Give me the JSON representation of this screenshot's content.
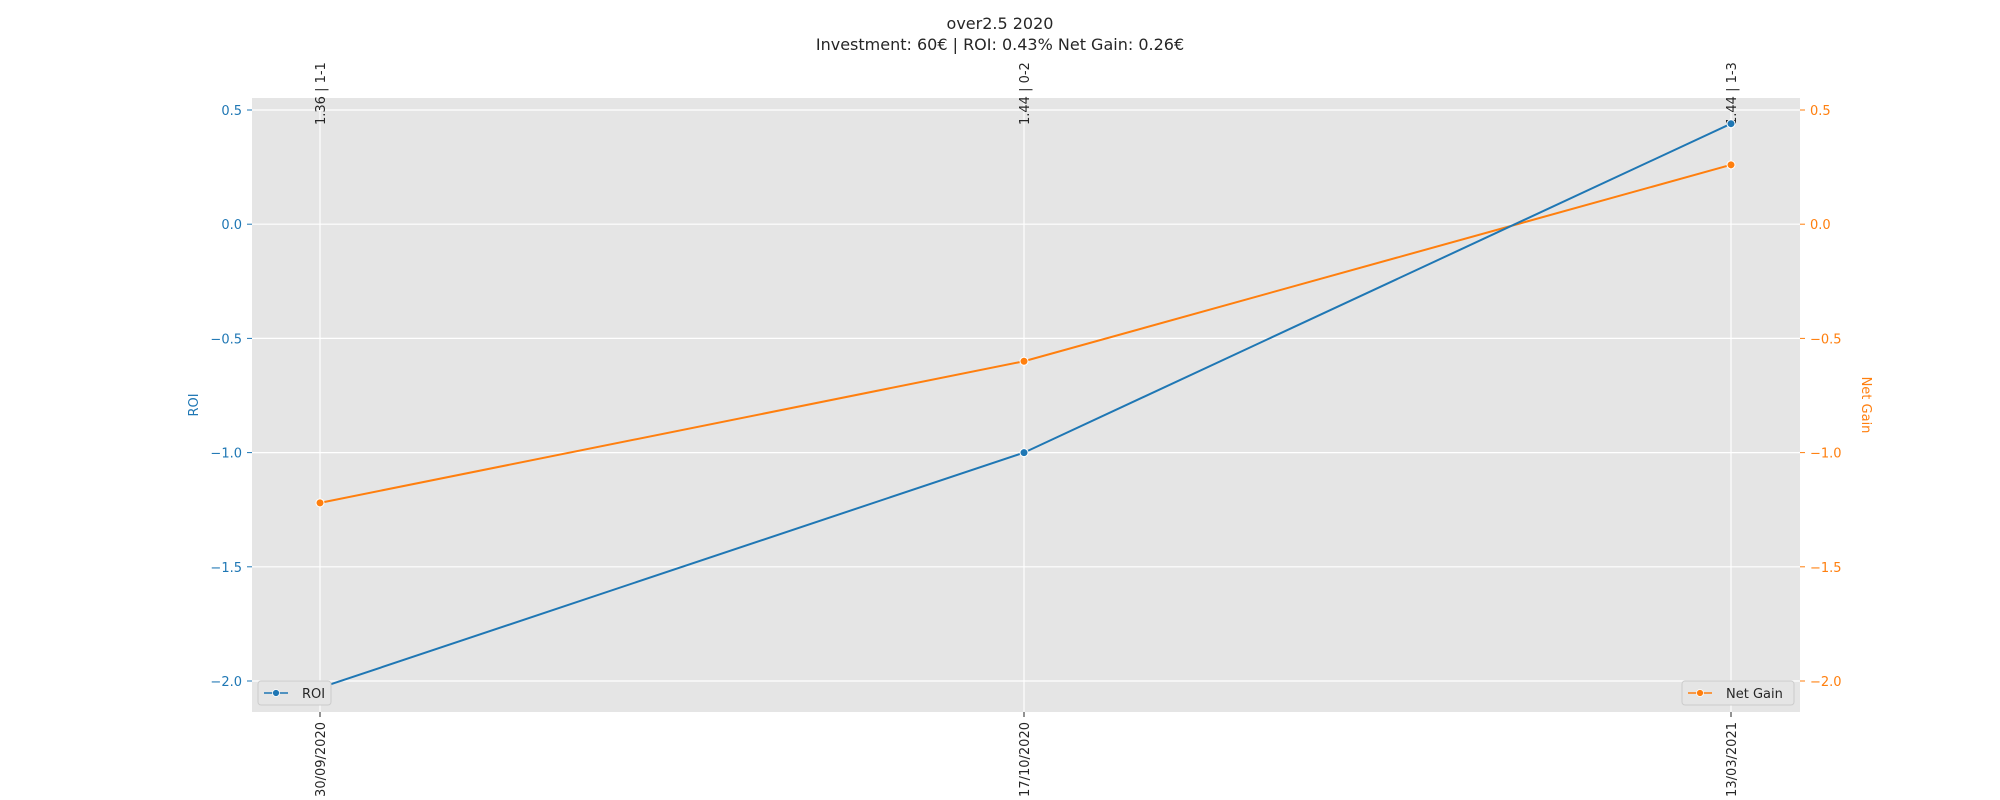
{
  "chart_data": {
    "type": "line",
    "title": "over2.5 2020",
    "subtitle": "Investment: 60€ | ROI: 0.43% Net Gain: 0.26€",
    "x": [
      "30/09/2020",
      "17/10/2020",
      "13/03/2021"
    ],
    "top_labels": [
      "1.36 | 1-1",
      "1.44 | 0-2",
      "1.44 | 1-3"
    ],
    "series": [
      {
        "name": "ROI",
        "axis": "left",
        "color": "#1f77b4",
        "values": [
          -2.03,
          -1.0,
          0.44
        ]
      },
      {
        "name": "Net Gain",
        "axis": "right",
        "color": "#ff7f0e",
        "values": [
          -1.22,
          -0.6,
          0.26
        ]
      }
    ],
    "ylabel_left": "ROI",
    "ylabel_right": "Net Gain",
    "ylim": [
      -2.1,
      0.55
    ],
    "yticks": [
      -2.0,
      -1.5,
      -1.0,
      -0.5,
      0.0,
      0.5
    ],
    "ytick_labels": [
      "−2.0",
      "−1.5",
      "−1.0",
      "−0.5",
      "0.0",
      "0.5"
    ],
    "grid": true,
    "legend_left": {
      "position": "lower-left",
      "label": "ROI"
    },
    "legend_right": {
      "position": "lower-right",
      "label": "Net Gain"
    },
    "colors": {
      "plot_bg": "#e5e5e5",
      "grid": "#ffffff",
      "roi": "#1f77b4",
      "net_gain": "#ff7f0e",
      "text": "#262626"
    }
  }
}
